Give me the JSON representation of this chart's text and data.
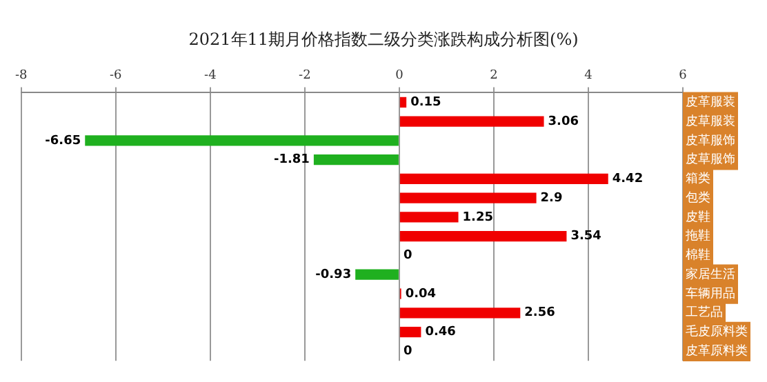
{
  "chart_data": {
    "type": "bar",
    "orientation": "horizontal",
    "title": "2021年11期月价格指数二级分类涨跌构成分析图(%)",
    "categories": [
      "皮革服装",
      "皮草服装",
      "皮革服饰",
      "皮草服饰",
      "箱类",
      "包类",
      "皮鞋",
      "拖鞋",
      "棉鞋",
      "家居生活",
      "车辆用品",
      "工艺品",
      "毛皮原料类",
      "皮革原料类"
    ],
    "values": [
      0.15,
      3.06,
      -6.65,
      -1.81,
      4.42,
      2.9,
      1.25,
      3.54,
      0,
      -0.93,
      0.04,
      2.56,
      0.46,
      0
    ],
    "colors": [
      "#f00000",
      "#f00000",
      "#1fb01f",
      "#1fb01f",
      "#f00000",
      "#f00000",
      "#f00000",
      "#f00000",
      "#f00000",
      "#1fb01f",
      "#f00000",
      "#f00000",
      "#f00000",
      "#f00000"
    ],
    "xlim": [
      -8,
      6
    ],
    "xticks": [
      -8,
      -6,
      -4,
      -2,
      0,
      2,
      4,
      6
    ],
    "grid": "x",
    "data_labels": true,
    "legend": false
  }
}
